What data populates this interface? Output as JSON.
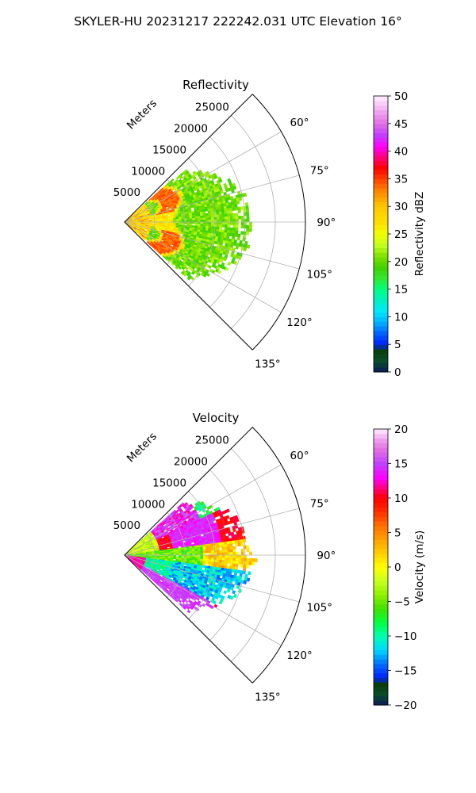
{
  "figure": {
    "suptitle": "SKYLER-HU  20231217  222242.031 UTC Elevation 16°"
  },
  "chart_data": [
    {
      "type": "heatmap",
      "projection": "polar sector (PPI)",
      "title": "Reflectivity",
      "radial_label": "Meters",
      "radial_ticks": [
        "5000",
        "10000",
        "15000",
        "20000",
        "25000"
      ],
      "radial_tick_values": [
        5000,
        10000,
        15000,
        20000,
        25000
      ],
      "rlim": [
        0,
        30000
      ],
      "angle_ticks": [
        "60°",
        "75°",
        "90°",
        "105°",
        "120°",
        "135°"
      ],
      "angle_tick_values": [
        60,
        75,
        90,
        105,
        120,
        135
      ],
      "theta_range_deg": [
        45,
        135
      ],
      "data_extent_m": [
        0,
        21000
      ],
      "grid": true,
      "colorbar": {
        "label": "Reflectivity dBZ",
        "ticks": [
          "0",
          "5",
          "10",
          "15",
          "20",
          "25",
          "30",
          "35",
          "40",
          "45",
          "50"
        ],
        "range": [
          0,
          50
        ],
        "colormap": "pyart_NWSRef",
        "stops": [
          [
            0,
            "#0b1a5a"
          ],
          [
            2,
            "#0a4d2a"
          ],
          [
            4,
            "#0a3d0a"
          ],
          [
            5,
            "#0020ff"
          ],
          [
            7,
            "#0060ff"
          ],
          [
            9,
            "#00b0ff"
          ],
          [
            11,
            "#00e8ff"
          ],
          [
            13,
            "#00f0c0"
          ],
          [
            15,
            "#00ff80"
          ],
          [
            17,
            "#30e830"
          ],
          [
            19,
            "#40d000"
          ],
          [
            21,
            "#80e000"
          ],
          [
            23,
            "#c0ff20"
          ],
          [
            25,
            "#f0ff00"
          ],
          [
            27,
            "#ffe000"
          ],
          [
            30,
            "#ffc800"
          ],
          [
            33,
            "#ff8000"
          ],
          [
            35,
            "#ff4000"
          ],
          [
            37,
            "#ff0000"
          ],
          [
            39,
            "#ff0080"
          ],
          [
            41,
            "#ff00ff"
          ],
          [
            43,
            "#c040ff"
          ],
          [
            45,
            "#e070e0"
          ],
          [
            47,
            "#f0a0f0"
          ],
          [
            50,
            "#fff0ff"
          ]
        ]
      },
      "field_description": {
        "dominant_range": [
          18,
          24
        ],
        "band_ranges_m": [
          [
            5500,
            9000
          ]
        ],
        "band_values": [
          34
        ],
        "near_values": [
          28
        ]
      }
    },
    {
      "type": "heatmap",
      "projection": "polar sector (PPI)",
      "title": "Velocity",
      "radial_label": "Meters",
      "radial_ticks": [
        "5000",
        "10000",
        "15000",
        "20000",
        "25000"
      ],
      "radial_tick_values": [
        5000,
        10000,
        15000,
        20000,
        25000
      ],
      "rlim": [
        0,
        30000
      ],
      "angle_ticks": [
        "60°",
        "75°",
        "90°",
        "105°",
        "120°",
        "135°"
      ],
      "angle_tick_values": [
        60,
        75,
        90,
        105,
        120,
        135
      ],
      "theta_range_deg": [
        45,
        135
      ],
      "data_extent_m": [
        0,
        21000
      ],
      "grid": true,
      "colorbar": {
        "label": "Velocity (m/s)",
        "ticks": [
          "−20",
          "−15",
          "−10",
          "−5",
          "0",
          "5",
          "10",
          "15",
          "20"
        ],
        "range": [
          -20,
          20
        ],
        "colormap": "pyart_NWSVel",
        "stops": [
          [
            -20,
            "#0b1a5a"
          ],
          [
            -18.5,
            "#0a4d2a"
          ],
          [
            -17,
            "#0a3d0a"
          ],
          [
            -16,
            "#0020ff"
          ],
          [
            -14,
            "#0070ff"
          ],
          [
            -12,
            "#00d8ff"
          ],
          [
            -10,
            "#00ffb0"
          ],
          [
            -8,
            "#00ff40"
          ],
          [
            -6,
            "#40e000"
          ],
          [
            -4,
            "#90f000"
          ],
          [
            -2,
            "#c8ff20"
          ],
          [
            0,
            "#ffff00"
          ],
          [
            2,
            "#ffd000"
          ],
          [
            4,
            "#ffa000"
          ],
          [
            6,
            "#ff7000"
          ],
          [
            8,
            "#ff3000"
          ],
          [
            10,
            "#ff0000"
          ],
          [
            11.5,
            "#ff0080"
          ],
          [
            13,
            "#ff00ff"
          ],
          [
            15,
            "#c040ff"
          ],
          [
            17,
            "#e070e0"
          ],
          [
            18.5,
            "#f0a0f0"
          ],
          [
            20,
            "#fff0ff"
          ]
        ]
      },
      "field_description": {
        "upper_sector_values": [
          10,
          14,
          0
        ],
        "lower_sector_values": [
          -12,
          14,
          10
        ],
        "center_values": [
          -6,
          0
        ]
      }
    }
  ]
}
